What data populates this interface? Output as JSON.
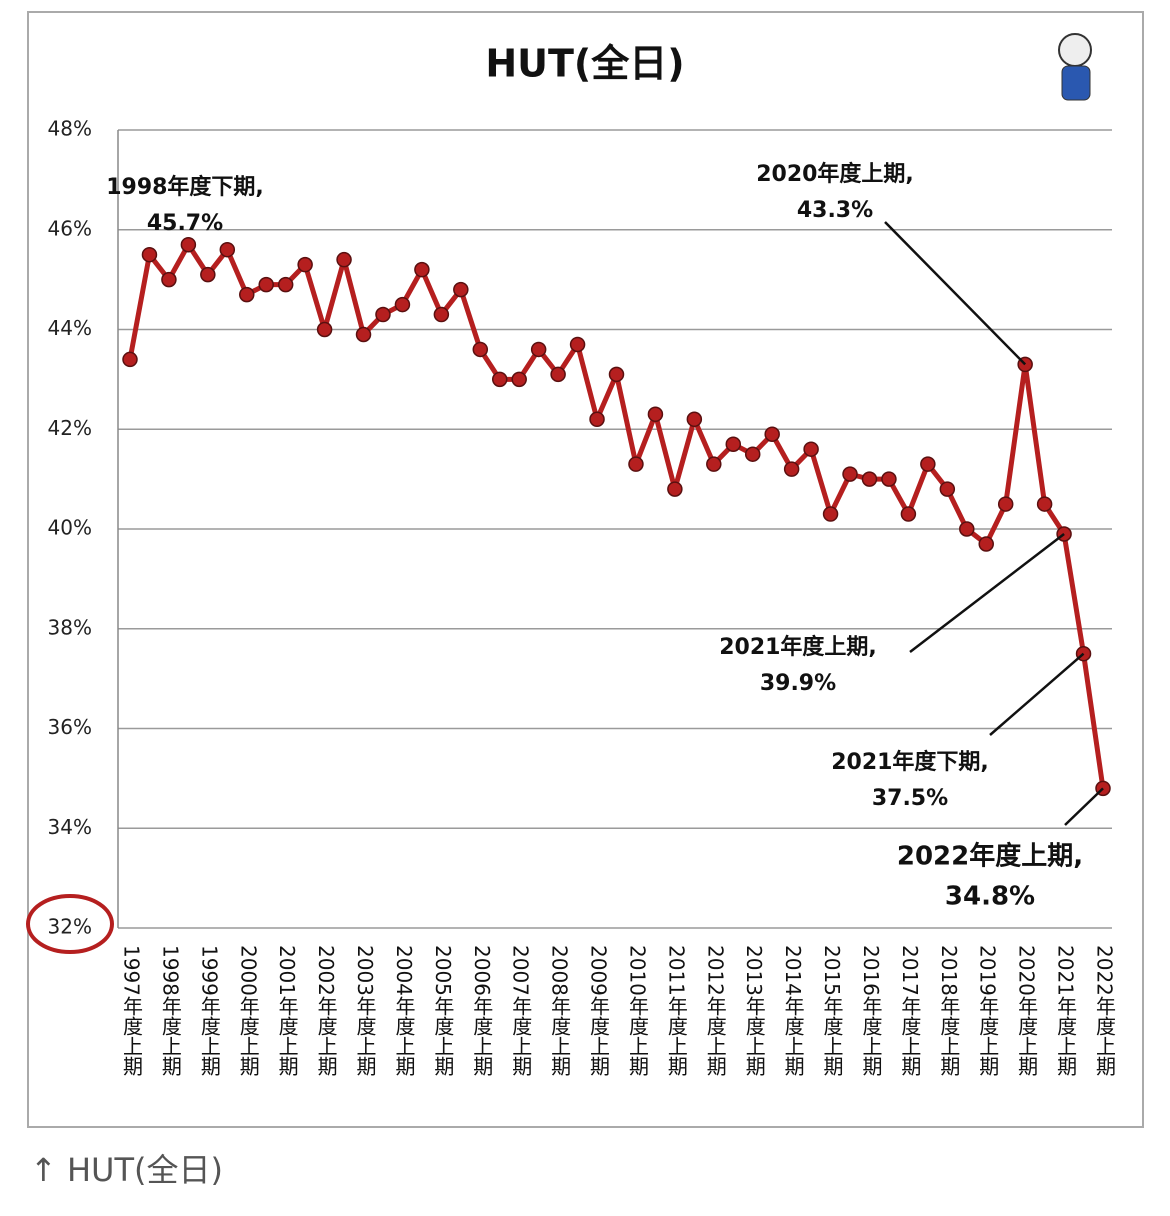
{
  "chart_data": {
    "type": "line",
    "title": "HUT(全日)",
    "categories": [
      "1997年度上期",
      null,
      "1998年度上期",
      null,
      "1999年度上期",
      null,
      "2000年度上期",
      null,
      "2001年度上期",
      null,
      "2002年度上期",
      null,
      "2003年度上期",
      null,
      "2004年度上期",
      null,
      "2005年度上期",
      null,
      "2006年度上期",
      null,
      "2007年度上期",
      null,
      "2008年度上期",
      null,
      "2009年度上期",
      null,
      "2010年度上期",
      null,
      "2011年度上期",
      null,
      "2012年度上期",
      null,
      "2013年度上期",
      null,
      "2014年度上期",
      null,
      "2015年度上期",
      null,
      "2016年度上期",
      null,
      "2017年度上期",
      null,
      "2018年度上期",
      null,
      "2019年度上期",
      null,
      "2020年度上期",
      null,
      "2021年度上期",
      null,
      "2022年度上期"
    ],
    "values": [
      43.4,
      45.5,
      45.0,
      45.7,
      45.1,
      45.6,
      44.7,
      44.9,
      44.9,
      45.3,
      44.0,
      45.4,
      43.9,
      44.3,
      44.5,
      45.2,
      44.3,
      44.8,
      43.6,
      43.0,
      43.0,
      43.6,
      43.1,
      43.7,
      42.2,
      43.1,
      41.3,
      42.3,
      40.8,
      42.2,
      41.3,
      41.7,
      41.5,
      41.9,
      41.2,
      41.6,
      40.3,
      41.1,
      41.0,
      41.0,
      40.3,
      41.3,
      40.8,
      40.0,
      39.7,
      40.5,
      43.3,
      40.5,
      39.9,
      37.5,
      34.8
    ],
    "color": "#b51f1f",
    "ylim": [
      32,
      48
    ],
    "yticks": [
      {
        "value": 32,
        "label": "32%"
      },
      {
        "value": 34,
        "label": "34%"
      },
      {
        "value": 36,
        "label": "36%"
      },
      {
        "value": 38,
        "label": "38%"
      },
      {
        "value": 40,
        "label": "40%"
      },
      {
        "value": 42,
        "label": "42%"
      },
      {
        "value": 44,
        "label": "44%"
      },
      {
        "value": 46,
        "label": "46%"
      },
      {
        "value": 48,
        "label": "48%"
      }
    ],
    "grid": true,
    "annotations": [
      {
        "label": "1998年度下期,",
        "value": "45.7%"
      },
      {
        "label": "2020年度上期,",
        "value": "43.3%"
      },
      {
        "label": "2021年度上期,",
        "value": "39.9%"
      },
      {
        "label": "2021年度下期,",
        "value": "37.5%"
      },
      {
        "label": "2022年度上期,",
        "value": "34.8%"
      }
    ],
    "caption": "↑ HUT(全日)"
  }
}
